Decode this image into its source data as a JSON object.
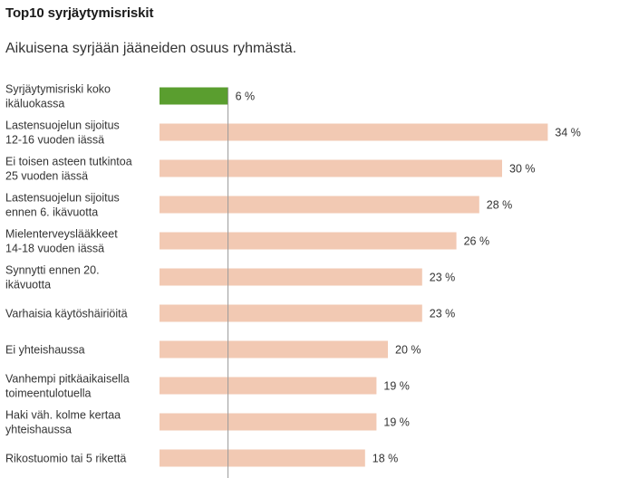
{
  "header": {
    "title": "Top10 syrjäytymisriskit",
    "subtitle": "Aikuisena syrjään jääneiden osuus ryhmästä."
  },
  "chart_data": {
    "type": "bar",
    "orientation": "horizontal",
    "title": "Top10 syrjäytymisriskit",
    "subtitle": "Aikuisena syrjään jääneiden osuus ryhmästä.",
    "value_suffix": " %",
    "xlim": [
      0,
      40
    ],
    "grid": false,
    "reference_line": 6,
    "categories": [
      [
        "Syrjäytymisriski koko",
        "ikäluokassa"
      ],
      [
        "Lastensuojelun sijoitus",
        "12-16 vuoden iässä"
      ],
      [
        "Ei toisen asteen tutkintoa",
        "25 vuoden iässä"
      ],
      [
        "Lastensuojelun sijoitus",
        "ennen 6. ikävuotta"
      ],
      [
        "Mielenterveyslääkkeet",
        "14-18 vuoden iässä"
      ],
      [
        "Synnytti ennen 20.",
        "ikävuotta"
      ],
      [
        "Varhaisia käytöshäiriöitä"
      ],
      [
        "Ei yhteishaussa"
      ],
      [
        "Vanhempi pitkäaikaisella",
        "toimeentulotuella"
      ],
      [
        "Haki väh. kolme kertaa",
        "yhteishaussa"
      ],
      [
        "Rikostuomio tai 5 rikettä"
      ]
    ],
    "values": [
      6,
      34,
      30,
      28,
      26,
      23,
      23,
      20,
      19,
      19,
      18
    ],
    "value_labels": [
      "6 %",
      "34 %",
      "30 %",
      "28 %",
      "26 %",
      "23 %",
      "23 %",
      "20 %",
      "19 %",
      "19 %",
      "18 %"
    ],
    "colors": {
      "highlight": "#5a9e2f",
      "default": "#f2c9b3",
      "reference_line": "#999999"
    },
    "highlight_index": 0
  }
}
